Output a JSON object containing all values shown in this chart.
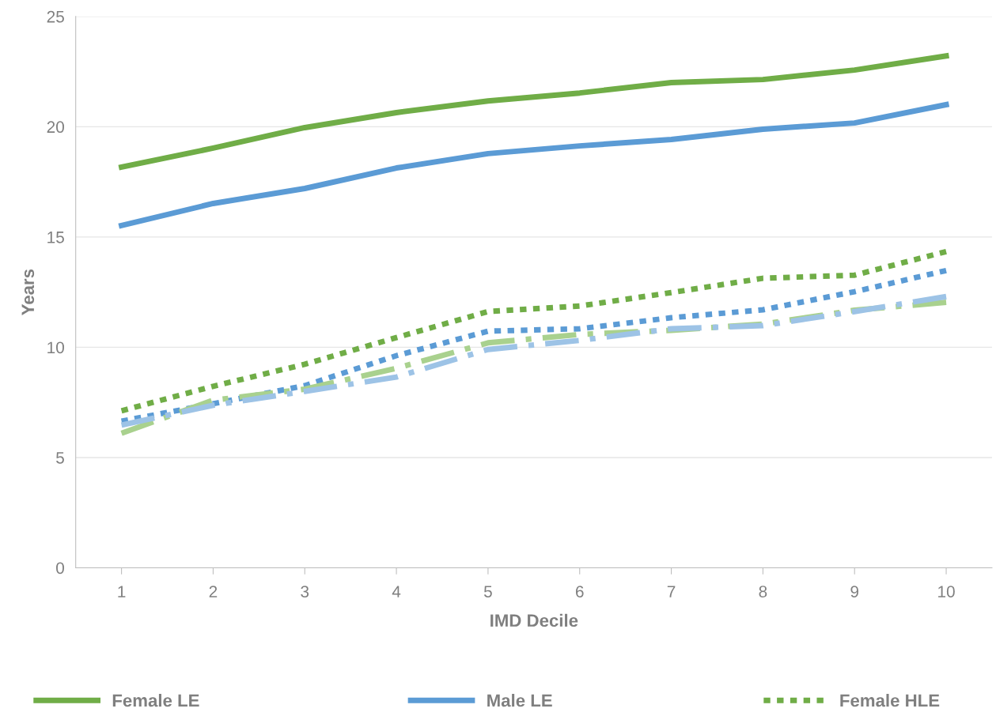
{
  "chart_data": {
    "type": "line",
    "xlabel": "IMD Decile",
    "ylabel": "Years",
    "categories": [
      "1",
      "2",
      "3",
      "4",
      "5",
      "6",
      "7",
      "8",
      "9",
      "10"
    ],
    "ylim": [
      0,
      25
    ],
    "yticks": [
      0,
      5,
      10,
      15,
      20,
      25
    ],
    "grid": "y",
    "legend": "bottom",
    "marker": "none",
    "series": [
      {
        "name": "Female LE",
        "color": "#70ad47",
        "line_style": "solid",
        "values": [
          18.17,
          19.03,
          19.96,
          20.64,
          21.17,
          21.53,
          22.0,
          22.14,
          22.57,
          23.21
        ]
      },
      {
        "name": "Male LE",
        "color": "#5b9bd5",
        "line_style": "solid",
        "values": [
          15.52,
          16.52,
          17.2,
          18.13,
          18.78,
          19.13,
          19.42,
          19.89,
          20.17,
          21.0
        ]
      },
      {
        "name": "Female HLE",
        "color": "#70ad47",
        "line_style": "dotted",
        "values": [
          7.12,
          8.23,
          9.23,
          10.44,
          11.62,
          11.87,
          12.48,
          13.13,
          13.27,
          14.34
        ]
      },
      {
        "color": "#5b9bd5",
        "line_style": "dotted",
        "values": [
          6.65,
          7.44,
          8.26,
          9.62,
          10.73,
          10.84,
          11.34,
          11.7,
          12.52,
          13.48
        ]
      },
      {
        "color": "#a9d18e",
        "line_style": "dashed",
        "values": [
          6.1,
          7.6,
          8.1,
          9.05,
          10.2,
          10.58,
          10.77,
          11.05,
          11.68,
          12.04
        ]
      },
      {
        "color": "#9dc3e6",
        "line_style": "dashed",
        "values": [
          6.47,
          7.37,
          8.0,
          8.65,
          9.9,
          10.31,
          10.84,
          10.98,
          11.62,
          12.3
        ]
      }
    ]
  }
}
